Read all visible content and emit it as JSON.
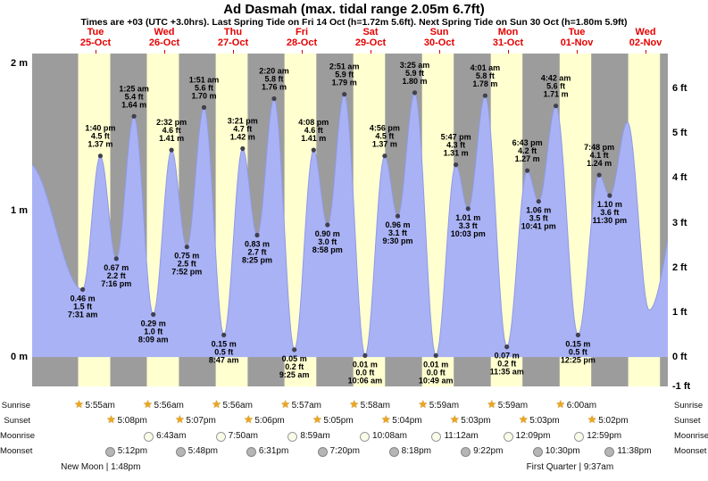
{
  "header": {
    "title": "Ad Dasmah (max. tidal range 2.05m 6.7ft)",
    "subtitle": "Times are +03 (UTC +3.0hrs). Last Spring Tide on Fri 14 Oct (h=1.72m 5.6ft). Next Spring Tide on Sun 30 Oct (h=1.80m 5.9ft)"
  },
  "colors": {
    "day_band": "#ffffd0",
    "night_band": "#9c9c9c",
    "tide_fill": "#a9b2f4",
    "tide_stroke": "#8f9ae8",
    "day_label_red": "#e60000",
    "sun_star": "#f0a519"
  },
  "chart_data": {
    "type": "area",
    "title": "Tide height curve for Ad Dasmah, Tue 25-Oct to Wed 02-Nov",
    "x_axis": {
      "start_day_offset": -0.4221,
      "end_day_offset": 8.824,
      "days": [
        {
          "name": "Tue",
          "date": "25-Oct"
        },
        {
          "name": "Wed",
          "date": "26-Oct"
        },
        {
          "name": "Thu",
          "date": "27-Oct"
        },
        {
          "name": "Fri",
          "date": "28-Oct"
        },
        {
          "name": "Sat",
          "date": "29-Oct"
        },
        {
          "name": "Sun",
          "date": "30-Oct"
        },
        {
          "name": "Mon",
          "date": "31-Oct"
        },
        {
          "name": "Tue",
          "date": "01-Nov"
        },
        {
          "name": "Wed",
          "date": "02-Nov"
        }
      ]
    },
    "y_axis_left": {
      "unit": "m",
      "ticks": [
        0,
        1,
        2
      ],
      "labels": [
        "0 m",
        "1 m",
        "2 m"
      ]
    },
    "y_axis_right": {
      "unit": "ft",
      "ticks": [
        -1,
        0,
        1,
        2,
        3,
        4,
        5,
        6
      ]
    },
    "y_range_m": [
      -0.2,
      2.067
    ],
    "partial_day_band": [
      8.2472,
      8.7097
    ],
    "tide_events": [
      {
        "t": -0.48,
        "type": "high",
        "m": "1.32",
        "labeled": false
      },
      {
        "t": 0.3132,
        "type": "low",
        "time": "7:31 am",
        "m": "0.46",
        "ft": "1.5",
        "labeled": true
      },
      {
        "t": 0.5694,
        "type": "high",
        "time": "1:40 pm",
        "m": "1.37",
        "ft": "4.5",
        "labeled": true
      },
      {
        "t": 0.8028,
        "type": "low",
        "time": "7:16 pm",
        "m": "0.67",
        "ft": "2.2",
        "labeled": true
      },
      {
        "t": 1.059,
        "type": "high",
        "time": "1:25 am",
        "m": "1.64",
        "ft": "5.4",
        "labeled": true
      },
      {
        "t": 1.3396,
        "type": "low",
        "time": "8:09 am",
        "m": "0.29",
        "ft": "1.0",
        "labeled": true
      },
      {
        "t": 1.6056,
        "type": "high",
        "time": "2:32 pm",
        "m": "1.41",
        "ft": "4.6",
        "labeled": true
      },
      {
        "t": 1.8278,
        "type": "low",
        "time": "7:52 pm",
        "m": "0.75",
        "ft": "2.5",
        "labeled": true
      },
      {
        "t": 2.0771,
        "type": "high",
        "time": "1:51 am",
        "m": "1.70",
        "ft": "5.6",
        "labeled": true
      },
      {
        "t": 2.366,
        "type": "low",
        "time": "8:47 am",
        "m": "0.15",
        "ft": "0.5",
        "labeled": true
      },
      {
        "t": 2.6396,
        "type": "high",
        "time": "3:21 pm",
        "m": "1.42",
        "ft": "4.7",
        "labeled": true
      },
      {
        "t": 2.8507,
        "type": "low",
        "time": "8:25 pm",
        "m": "0.83",
        "ft": "2.7",
        "labeled": true
      },
      {
        "t": 3.0972,
        "type": "high",
        "time": "2:20 am",
        "m": "1.76",
        "ft": "5.8",
        "labeled": true
      },
      {
        "t": 3.3924,
        "type": "low",
        "time": "9:25 am",
        "m": "0.05",
        "ft": "0.2",
        "labeled": true
      },
      {
        "t": 3.6722,
        "type": "high",
        "time": "4:08 pm",
        "m": "1.41",
        "ft": "4.6",
        "labeled": true
      },
      {
        "t": 3.8736,
        "type": "low",
        "time": "8:58 pm",
        "m": "0.90",
        "ft": "3.0",
        "labeled": true
      },
      {
        "t": 4.1188,
        "type": "high",
        "time": "2:51 am",
        "m": "1.79",
        "ft": "5.9",
        "labeled": true
      },
      {
        "t": 4.4208,
        "type": "low",
        "time": "10:06 am",
        "m": "0.01",
        "ft": "0.0",
        "labeled": true
      },
      {
        "t": 4.7056,
        "type": "high",
        "time": "4:56 pm",
        "m": "1.37",
        "ft": "4.5",
        "labeled": true
      },
      {
        "t": 4.8958,
        "type": "low",
        "time": "9:30 pm",
        "m": "0.96",
        "ft": "3.1",
        "labeled": true
      },
      {
        "t": 5.1424,
        "type": "high",
        "time": "3:25 am",
        "m": "1.80",
        "ft": "5.9",
        "labeled": true
      },
      {
        "t": 5.4507,
        "type": "low",
        "time": "10:49 am",
        "m": "0.01",
        "ft": "0.0",
        "labeled": true
      },
      {
        "t": 5.741,
        "type": "high",
        "time": "5:47 pm",
        "m": "1.31",
        "ft": "4.3",
        "labeled": true
      },
      {
        "t": 5.9188,
        "type": "low",
        "time": "10:03 pm",
        "m": "1.01",
        "ft": "3.3",
        "labeled": true
      },
      {
        "t": 6.1674,
        "type": "high",
        "time": "4:01 am",
        "m": "1.78",
        "ft": "5.8",
        "labeled": true
      },
      {
        "t": 6.4826,
        "type": "low",
        "time": "11:35 am",
        "m": "0.07",
        "ft": "0.2",
        "labeled": true
      },
      {
        "t": 6.7799,
        "type": "high",
        "time": "6:43 pm",
        "m": "1.27",
        "ft": "4.2",
        "labeled": true
      },
      {
        "t": 6.9451,
        "type": "low",
        "time": "10:41 pm",
        "m": "1.06",
        "ft": "3.5",
        "labeled": true
      },
      {
        "t": 7.1958,
        "type": "high",
        "time": "4:42 am",
        "m": "1.71",
        "ft": "5.6",
        "labeled": true
      },
      {
        "t": 7.5174,
        "type": "low",
        "time": "12:25 pm",
        "m": "0.15",
        "ft": "0.5",
        "labeled": true
      },
      {
        "t": 7.825,
        "type": "high",
        "time": "7:48 pm",
        "m": "1.24",
        "ft": "4.1",
        "labeled": true
      },
      {
        "t": 7.9792,
        "type": "low",
        "time": "11:30 pm",
        "m": "1.10",
        "ft": "3.6",
        "labeled": true
      },
      {
        "t": 8.2375,
        "type": "high",
        "m": "1.60",
        "labeled": false
      },
      {
        "t": 8.552,
        "type": "low",
        "m": "0.32",
        "labeled": false
      },
      {
        "t": 9.05,
        "type": "high",
        "m": "1.15",
        "labeled": false
      }
    ]
  },
  "astro": {
    "sunrise": {
      "label": "Sunrise",
      "entries": [
        {
          "t": 0.2465,
          "time": "5:55am"
        },
        {
          "t": 1.2472,
          "time": "5:56am"
        },
        {
          "t": 2.2472,
          "time": "5:56am"
        },
        {
          "t": 3.2479,
          "time": "5:57am"
        },
        {
          "t": 4.2486,
          "time": "5:58am"
        },
        {
          "t": 5.2493,
          "time": "5:59am"
        },
        {
          "t": 6.2493,
          "time": "5:59am"
        },
        {
          "t": 7.25,
          "time": "6:00am"
        }
      ]
    },
    "sunset": {
      "label": "Sunset",
      "entries": [
        {
          "t": 0.7139,
          "time": "5:08pm"
        },
        {
          "t": 1.7132,
          "time": "5:07pm"
        },
        {
          "t": 2.7125,
          "time": "5:06pm"
        },
        {
          "t": 3.7118,
          "time": "5:05pm"
        },
        {
          "t": 4.7111,
          "time": "5:04pm"
        },
        {
          "t": 5.7104,
          "time": "5:03pm"
        },
        {
          "t": 6.7104,
          "time": "5:03pm"
        },
        {
          "t": 7.7097,
          "time": "5:02pm"
        }
      ]
    },
    "moonrise": {
      "label": "Moonrise",
      "entries": [
        {
          "t": 1.2799,
          "time": "6:43am"
        },
        {
          "t": 2.3264,
          "time": "7:50am"
        },
        {
          "t": 3.3743,
          "time": "8:59am"
        },
        {
          "t": 4.4222,
          "time": "10:08am"
        },
        {
          "t": 5.4667,
          "time": "11:12am"
        },
        {
          "t": 6.5063,
          "time": "12:09pm"
        },
        {
          "t": 7.541,
          "time": "12:59pm"
        }
      ]
    },
    "moonset": {
      "label": "Moonset",
      "entries": [
        {
          "t": 0.7167,
          "time": "5:12pm"
        },
        {
          "t": 1.7417,
          "time": "5:48pm"
        },
        {
          "t": 2.7715,
          "time": "6:31pm"
        },
        {
          "t": 3.8056,
          "time": "7:20pm"
        },
        {
          "t": 4.8458,
          "time": "8:18pm"
        },
        {
          "t": 5.8903,
          "time": "9:22pm"
        },
        {
          "t": 6.9375,
          "time": "10:30pm"
        },
        {
          "t": 7.9847,
          "time": "11:38pm"
        }
      ]
    },
    "phases": [
      {
        "t": 0.575,
        "text": "New Moon | 1:48pm"
      },
      {
        "t": 7.4007,
        "text": "First Quarter | 9:37am"
      }
    ]
  }
}
